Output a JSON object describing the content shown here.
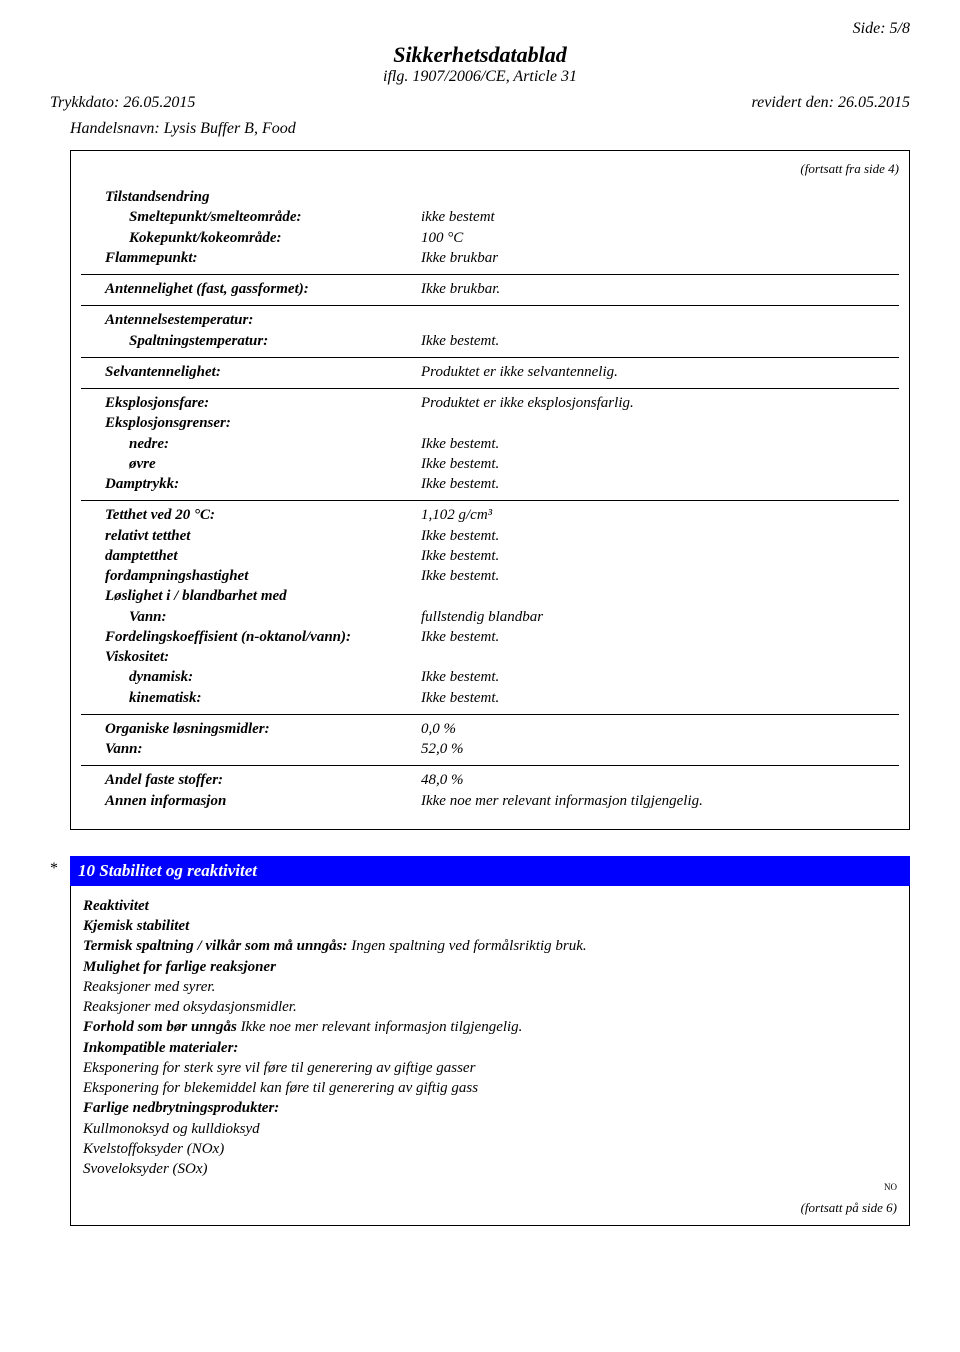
{
  "page_number_label": "Side: 5/8",
  "doc_title": "Sikkerhetsdatablad",
  "doc_subtitle": "iflg. 1907/2006/CE, Article 31",
  "print_date": "Trykkdato: 26.05.2015",
  "revised_date": "revidert den: 26.05.2015",
  "product_name": "Handelsnavn: Lysis Buffer B, Food",
  "continued_from": "(fortsatt fra side 4)",
  "section9": {
    "g1": {
      "title": "Tilstandsendring",
      "rows": [
        {
          "label": "Smeltepunkt/smelteområde:",
          "val": "ikke bestemt",
          "bold": true,
          "indent": 2
        },
        {
          "label": "Kokepunkt/kokeområde:",
          "val": "100 °C",
          "bold": true,
          "indent": 2
        },
        {
          "label": "Flammepunkt:",
          "val": "Ikke brukbar",
          "bold": true,
          "indent": 1
        }
      ]
    },
    "g2": {
      "rows": [
        {
          "label": "Antennelighet (fast, gassformet):",
          "val": "Ikke brukbar.",
          "bold": true,
          "indent": 1
        }
      ]
    },
    "g3": {
      "rows": [
        {
          "label": "Antennelsestemperatur:",
          "val": "",
          "bold": true,
          "indent": 1
        },
        {
          "label": "Spaltningstemperatur:",
          "val": "Ikke bestemt.",
          "bold": true,
          "indent": 2
        }
      ]
    },
    "g4": {
      "rows": [
        {
          "label": "Selvantennelighet:",
          "val": "Produktet er ikke selvantennelig.",
          "bold": true,
          "indent": 1
        }
      ]
    },
    "g5": {
      "rows": [
        {
          "label": "Eksplosjonsfare:",
          "val": "Produktet er ikke eksplosjonsfarlig.",
          "bold": true,
          "indent": 1
        },
        {
          "label": "Eksplosjonsgrenser:",
          "val": "",
          "bold": true,
          "indent": 1
        },
        {
          "label": "nedre:",
          "val": "Ikke bestemt.",
          "bold": true,
          "indent": 2
        },
        {
          "label": "øvre",
          "val": "Ikke bestemt.",
          "bold": true,
          "indent": 2
        },
        {
          "label": "Damptrykk:",
          "val": "Ikke bestemt.",
          "bold": true,
          "indent": 1
        }
      ]
    },
    "g6": {
      "rows": [
        {
          "label": "Tetthet ved 20 °C:",
          "val": "1,102 g/cm³",
          "bold": true,
          "indent": 1
        },
        {
          "label": "relativt tetthet",
          "val": "Ikke bestemt.",
          "bold": true,
          "indent": 1
        },
        {
          "label": "damptetthet",
          "val": "Ikke bestemt.",
          "bold": true,
          "indent": 1
        },
        {
          "label": "fordampningshastighet",
          "val": "Ikke bestemt.",
          "bold": true,
          "indent": 1
        },
        {
          "label": "Løslighet i / blandbarhet med",
          "val": "",
          "bold": true,
          "indent": 1
        },
        {
          "label": "Vann:",
          "val": "fullstendig blandbar",
          "bold": true,
          "indent": 2
        },
        {
          "label": "Fordelingskoeffisient (n-oktanol/vann):",
          "val": "Ikke bestemt.",
          "bold": true,
          "indent": 1
        },
        {
          "label": "Viskositet:",
          "val": "",
          "bold": true,
          "indent": 1
        },
        {
          "label": "dynamisk:",
          "val": "Ikke bestemt.",
          "bold": true,
          "indent": 2
        },
        {
          "label": "kinematisk:",
          "val": "Ikke bestemt.",
          "bold": true,
          "indent": 2
        }
      ]
    },
    "g7": {
      "rows": [
        {
          "label": "Organiske løsningsmidler:",
          "val": "0,0 %",
          "bold": true,
          "indent": 1
        },
        {
          "label": "Vann:",
          "val": "52,0 %",
          "bold": true,
          "indent": 1
        }
      ]
    },
    "g8": {
      "rows": [
        {
          "label": "Andel faste stoffer:",
          "val": "48,0 %",
          "bold": true,
          "indent": 1
        },
        {
          "label": "Annen informasjon",
          "val": "Ikke noe mer relevant informasjon tilgjengelig.",
          "bold": true,
          "indent": 1
        }
      ]
    }
  },
  "section10": {
    "title": "10 Stabilitet og reaktivitet",
    "lines": [
      {
        "text": "Reaktivitet",
        "bold": true
      },
      {
        "text": "Kjemisk stabilitet",
        "bold": true
      },
      {
        "mixed": true,
        "boldpart": "Termisk spaltning / vilkår som må unngås:",
        "rest": " Ingen spaltning ved formålsriktig bruk."
      },
      {
        "text": "Mulighet for farlige reaksjoner",
        "bold": true
      },
      {
        "text": "Reaksjoner med syrer.",
        "bold": false
      },
      {
        "text": "Reaksjoner med oksydasjonsmidler.",
        "bold": false
      },
      {
        "mixed": true,
        "boldpart": "Forhold som bør unngås",
        "rest": " Ikke noe mer relevant informasjon tilgjengelig."
      },
      {
        "text": "Inkompatible materialer:",
        "bold": true
      },
      {
        "text": "Eksponering for sterk syre vil føre til generering av giftige gasser",
        "bold": false
      },
      {
        "text": "Eksponering for blekemiddel kan føre til generering av giftig gass",
        "bold": false
      },
      {
        "text": "Farlige nedbrytningsprodukter:",
        "bold": true
      },
      {
        "text": "Kullmonoksyd og kulldioksyd",
        "bold": false
      },
      {
        "text": "Kvelstoffoksyder (NOx)",
        "bold": false
      },
      {
        "text": "Svoveloksyder (SOx)",
        "bold": false
      }
    ],
    "tiny": "NO",
    "continued": "(fortsatt på side 6)"
  },
  "colors": {
    "section_bar_bg": "#0000ff",
    "section_bar_fg": "#ffffff",
    "border": "#000000",
    "page_bg": "#ffffff"
  }
}
